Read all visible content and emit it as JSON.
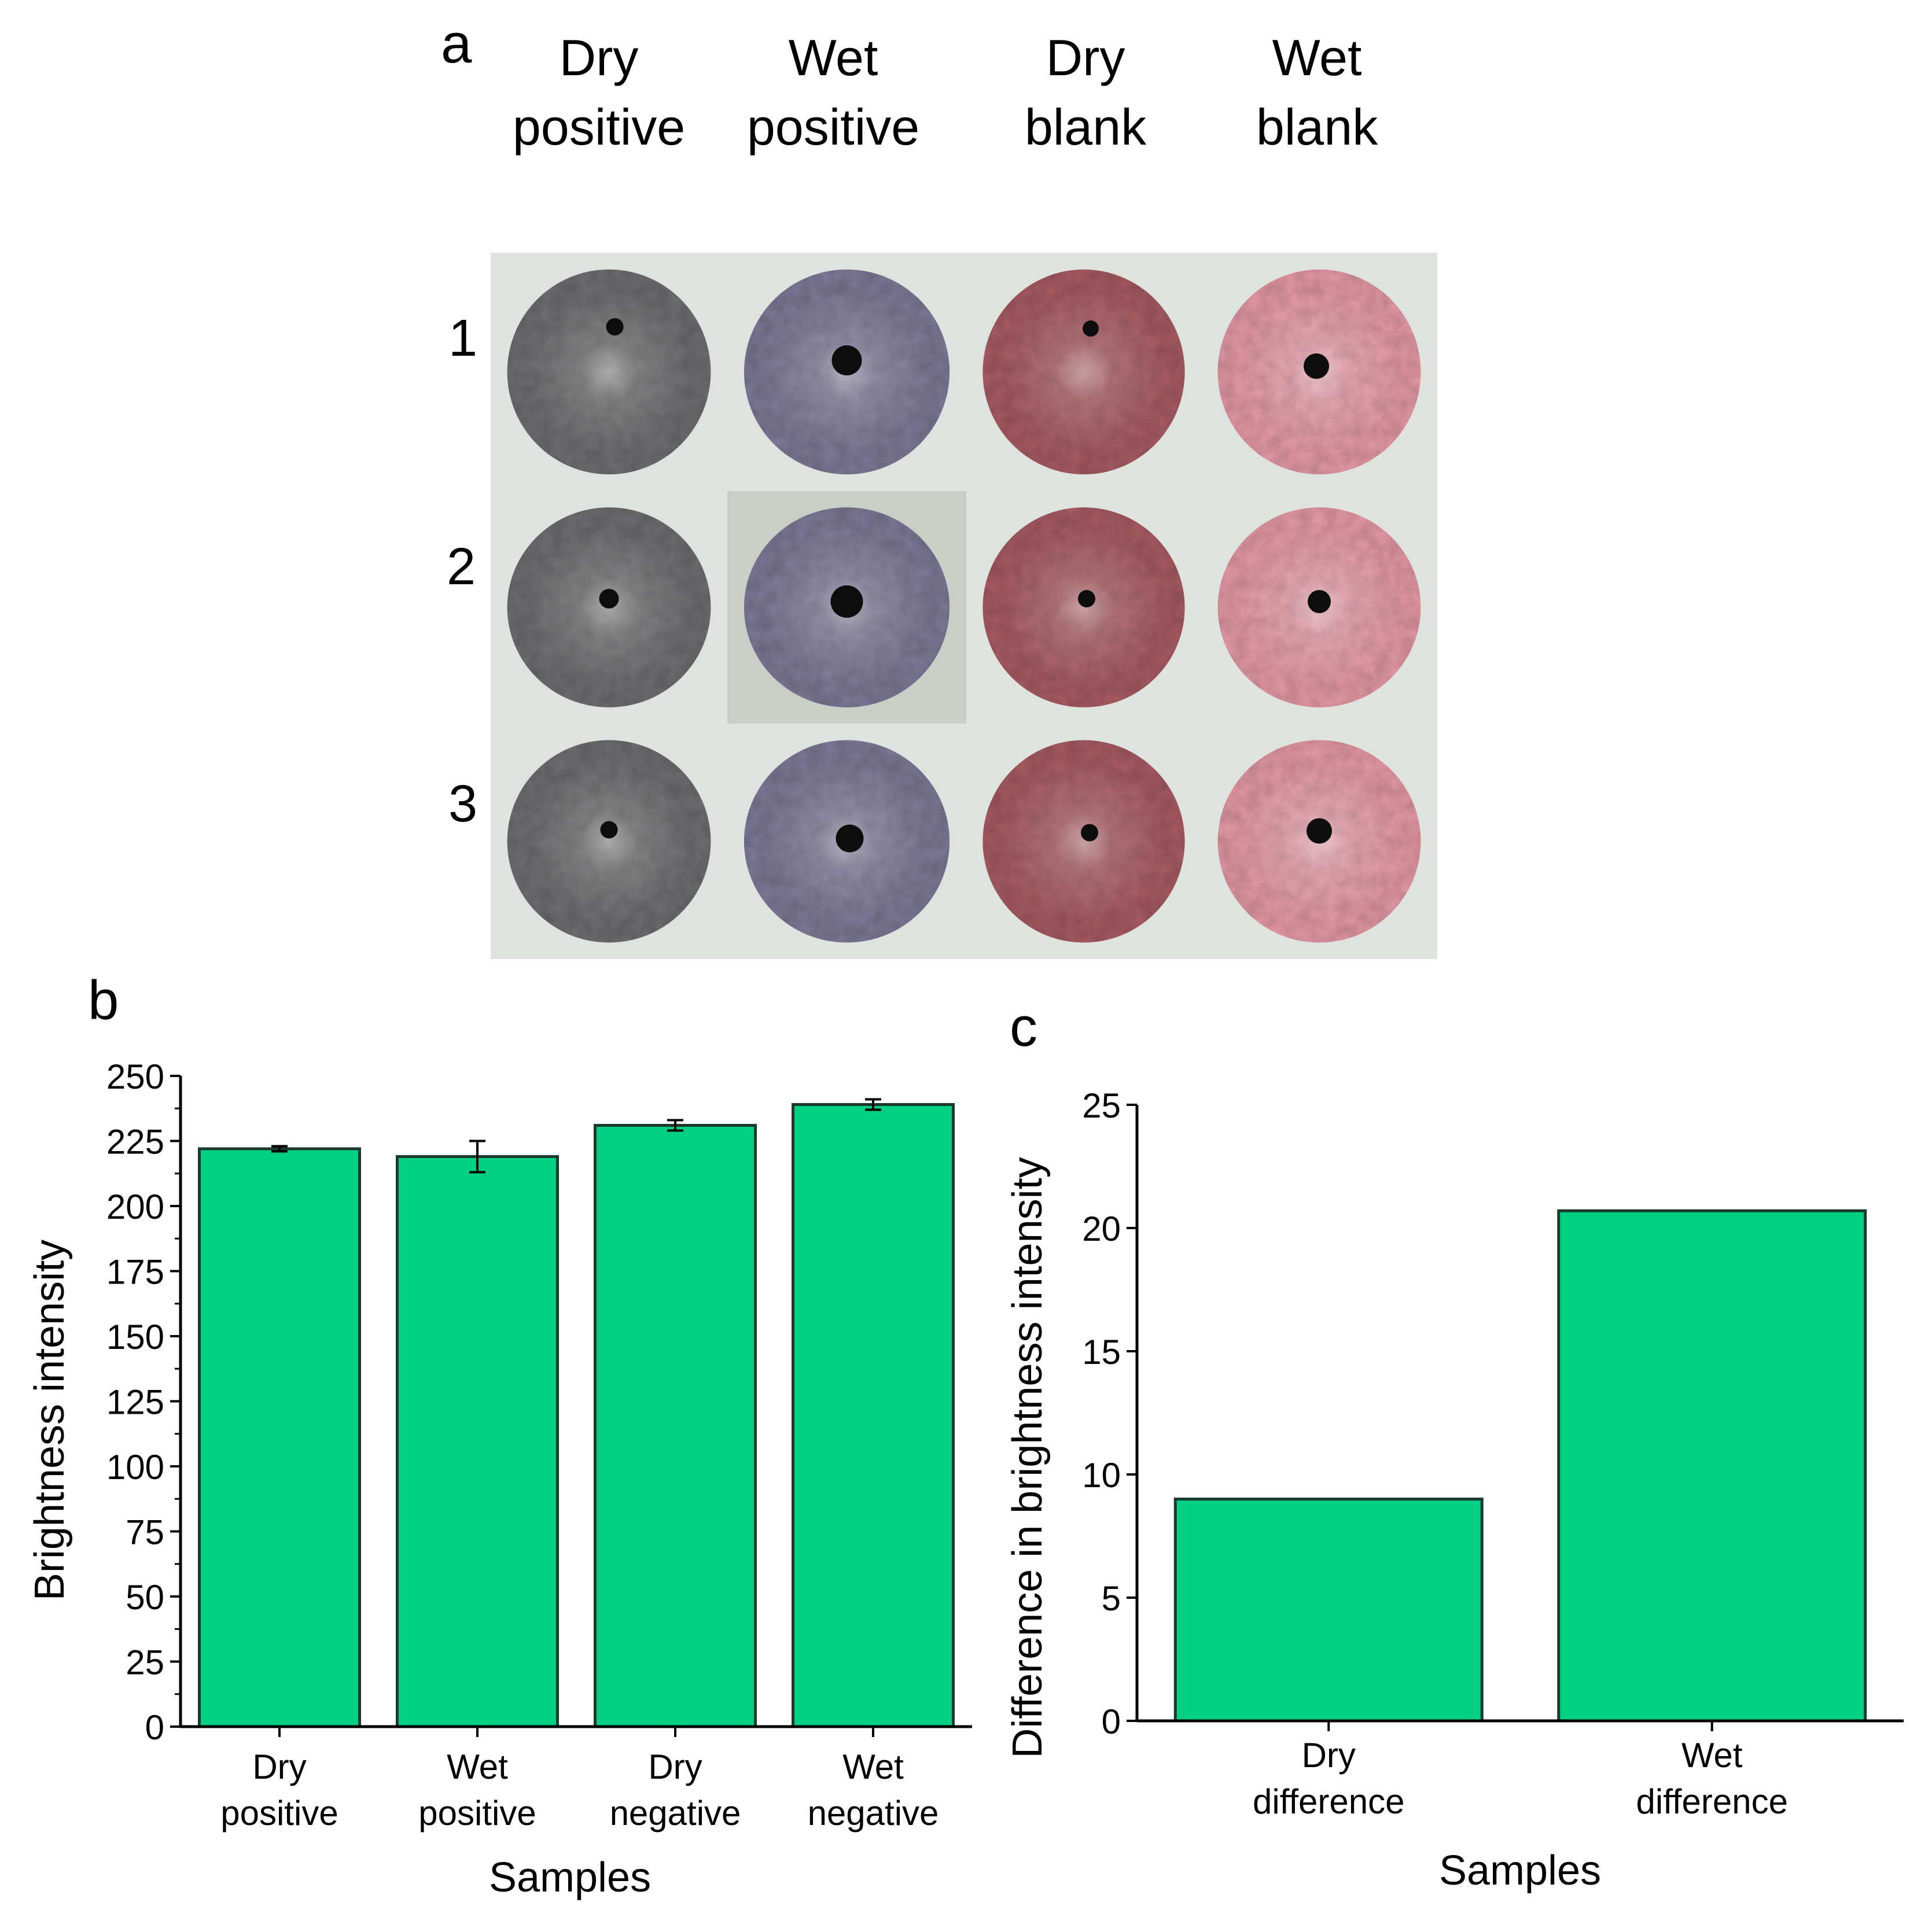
{
  "panel_a": {
    "label": "a",
    "columns": [
      {
        "line1": "Dry",
        "line2": "positive"
      },
      {
        "line1": "Wet",
        "line2": "positive"
      },
      {
        "line1": "Dry",
        "line2": "blank"
      },
      {
        "line1": "Wet",
        "line2": "blank"
      }
    ],
    "rows": [
      "1",
      "2",
      "3"
    ],
    "colors": {
      "dry_positive": "#6f6f72",
      "wet_positive": "#7e7a98",
      "dry_blank": "#a85c62",
      "wet_blank": "#e59aa6",
      "background": "#dfe3e0",
      "center_spot": "#0d0d0d"
    }
  },
  "colors": {
    "bar_fill": "#00d084",
    "bar_stroke": "#1c3a2c"
  },
  "chart_data": [
    {
      "panel": "b",
      "type": "bar",
      "categories": [
        "Dry positive",
        "Wet positive",
        "Dry negative",
        "Wet negative"
      ],
      "category_lines": [
        [
          "Dry",
          "positive"
        ],
        [
          "Wet",
          "positive"
        ],
        [
          "Dry",
          "negative"
        ],
        [
          "Wet",
          "negative"
        ]
      ],
      "values": [
        222,
        219,
        231,
        239
      ],
      "errors": [
        1,
        6,
        2,
        2
      ],
      "title": "",
      "xlabel": "Samples",
      "ylabel": "Brightness intensity",
      "ylim": [
        0,
        250
      ],
      "yticks": [
        0,
        25,
        50,
        75,
        100,
        125,
        150,
        175,
        200,
        225,
        250
      ],
      "grid": false
    },
    {
      "panel": "c",
      "type": "bar",
      "categories": [
        "Dry difference",
        "Wet difference"
      ],
      "category_lines": [
        [
          "Dry",
          "difference"
        ],
        [
          "Wet",
          "difference"
        ]
      ],
      "values": [
        9,
        20.7
      ],
      "title": "",
      "xlabel": "Samples",
      "ylabel": "Difference in brightness intensity",
      "ylim": [
        0,
        25
      ],
      "yticks": [
        0,
        5,
        10,
        15,
        20,
        25
      ],
      "grid": false
    }
  ]
}
